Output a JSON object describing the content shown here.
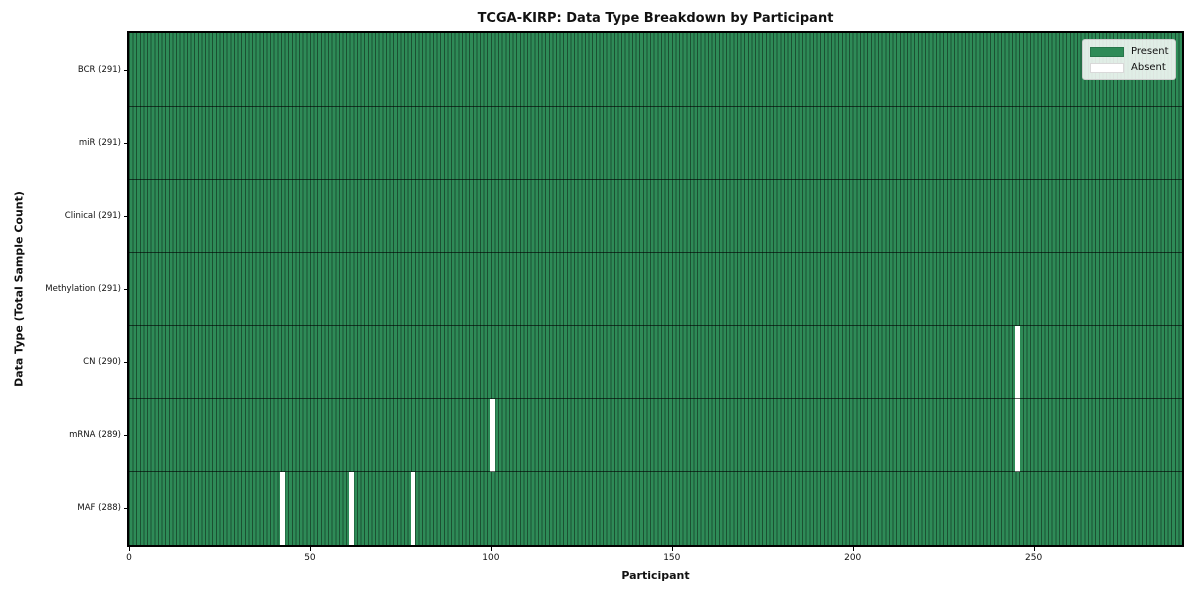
{
  "chart_data": {
    "type": "heatmap",
    "title": "TCGA-KIRP: Data Type Breakdown by Participant",
    "xlabel": "Participant",
    "ylabel": "Data Type (Total Sample Count)",
    "n_participants": 291,
    "x_ticks": [
      0,
      50,
      100,
      150,
      200,
      250
    ],
    "rows": [
      {
        "label": "BCR (291)",
        "name": "BCR",
        "total": 291,
        "absent": []
      },
      {
        "label": "miR (291)",
        "name": "miR",
        "total": 291,
        "absent": []
      },
      {
        "label": "Clinical (291)",
        "name": "Clinical",
        "total": 291,
        "absent": []
      },
      {
        "label": "Methylation (291)",
        "name": "Methylation",
        "total": 291,
        "absent": []
      },
      {
        "label": "CN (290)",
        "name": "CN",
        "total": 290,
        "absent": [
          245
        ]
      },
      {
        "label": "mRNA (289)",
        "name": "mRNA",
        "total": 289,
        "absent": [
          100,
          245
        ]
      },
      {
        "label": "MAF (288)",
        "name": "MAF",
        "total": 288,
        "absent": [
          42,
          61,
          78
        ]
      }
    ],
    "legend": [
      {
        "label": "Present",
        "color": "#2e8b57"
      },
      {
        "label": "Absent",
        "color": "#ffffff"
      }
    ],
    "colors": {
      "present": "#2e8b57",
      "absent": "#ffffff",
      "column_line": "rgba(0,0,0,0.42)",
      "row_line": "rgba(0,0,0,0.60)",
      "spine": "#000000",
      "text": "#111111"
    }
  }
}
